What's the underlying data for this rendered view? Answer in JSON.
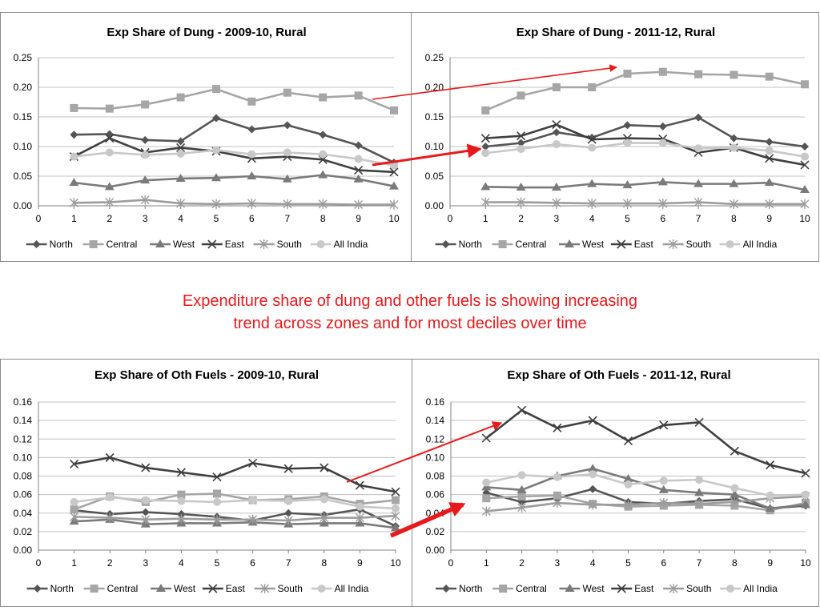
{
  "colors": {
    "North": "#555555",
    "Central": "#a6a6a6",
    "West": "#7a7a7a",
    "East": "#3f3f3f",
    "South": "#9c9c9c",
    "All India": "#c8c8c8",
    "arrow": "#e8191c",
    "grid": "#c0c0c0"
  },
  "caption": {
    "line1": "Expenditure share of dung and other fuels is showing increasing",
    "line2": "trend across zones and for most deciles over time"
  },
  "chart_data": [
    {
      "type": "line",
      "title": "Exp Share of Dung - 2009-10, Rural",
      "x": [
        1,
        2,
        3,
        4,
        5,
        6,
        7,
        8,
        9,
        10
      ],
      "xlim": [
        0,
        10
      ],
      "ylim": [
        0,
        0.25
      ],
      "yticks": [
        "0.00",
        "0.05",
        "0.10",
        "0.15",
        "0.20",
        "0.25"
      ],
      "xticks": [
        "0",
        "1",
        "2",
        "3",
        "4",
        "5",
        "6",
        "7",
        "8",
        "9",
        "10"
      ],
      "series": [
        {
          "name": "North",
          "marker": "diamond",
          "values": [
            0.12,
            0.121,
            0.111,
            0.109,
            0.148,
            0.129,
            0.136,
            0.12,
            0.102,
            0.073
          ]
        },
        {
          "name": "Central",
          "marker": "square",
          "values": [
            0.165,
            0.164,
            0.171,
            0.183,
            0.197,
            0.176,
            0.191,
            0.183,
            0.186,
            0.161
          ]
        },
        {
          "name": "West",
          "marker": "triangle",
          "values": [
            0.039,
            0.032,
            0.043,
            0.046,
            0.047,
            0.05,
            0.045,
            0.052,
            0.045,
            0.033
          ]
        },
        {
          "name": "East",
          "marker": "x",
          "values": [
            0.083,
            0.114,
            0.09,
            0.098,
            0.092,
            0.08,
            0.083,
            0.078,
            0.06,
            0.057
          ]
        },
        {
          "name": "South",
          "marker": "star",
          "values": [
            0.005,
            0.006,
            0.01,
            0.004,
            0.003,
            0.004,
            0.003,
            0.003,
            0.002,
            0.002
          ]
        },
        {
          "name": "All India",
          "marker": "circle",
          "values": [
            0.083,
            0.09,
            0.086,
            0.088,
            0.094,
            0.087,
            0.09,
            0.087,
            0.079,
            0.068
          ]
        }
      ]
    },
    {
      "type": "line",
      "title": "Exp Share of Dung - 2011-12, Rural",
      "x": [
        1,
        2,
        3,
        4,
        5,
        6,
        7,
        8,
        9,
        10
      ],
      "xlim": [
        0,
        10
      ],
      "ylim": [
        0,
        0.25
      ],
      "yticks": [
        "0.00",
        "0.05",
        "0.10",
        "0.15",
        "0.20",
        "0.25"
      ],
      "xticks": [
        "0",
        "1",
        "2",
        "3",
        "4",
        "5",
        "6",
        "7",
        "8",
        "9",
        "10"
      ],
      "series": [
        {
          "name": "North",
          "marker": "diamond",
          "values": [
            0.1,
            0.106,
            0.124,
            0.115,
            0.136,
            0.134,
            0.149,
            0.114,
            0.108,
            0.1
          ]
        },
        {
          "name": "Central",
          "marker": "square",
          "values": [
            0.161,
            0.186,
            0.2,
            0.2,
            0.223,
            0.226,
            0.222,
            0.221,
            0.218,
            0.205
          ]
        },
        {
          "name": "West",
          "marker": "triangle",
          "values": [
            0.032,
            0.031,
            0.031,
            0.037,
            0.035,
            0.04,
            0.037,
            0.037,
            0.039,
            0.027
          ]
        },
        {
          "name": "East",
          "marker": "x",
          "values": [
            0.114,
            0.118,
            0.137,
            0.112,
            0.114,
            0.113,
            0.09,
            0.098,
            0.08,
            0.069
          ]
        },
        {
          "name": "South",
          "marker": "star",
          "values": [
            0.006,
            0.006,
            0.005,
            0.004,
            0.004,
            0.004,
            0.006,
            0.003,
            0.003,
            0.003
          ]
        },
        {
          "name": "All India",
          "marker": "circle",
          "values": [
            0.089,
            0.096,
            0.104,
            0.098,
            0.106,
            0.106,
            0.097,
            0.098,
            0.093,
            0.083
          ]
        }
      ]
    },
    {
      "type": "line",
      "title": "Exp Share of Oth Fuels - 2009-10, Rural",
      "x": [
        1,
        2,
        3,
        4,
        5,
        6,
        7,
        8,
        9,
        10
      ],
      "xlim": [
        0,
        10
      ],
      "ylim": [
        0,
        0.16
      ],
      "yticks": [
        "0.00",
        "0.02",
        "0.04",
        "0.06",
        "0.08",
        "0.10",
        "0.12",
        "0.14",
        "0.16"
      ],
      "xticks": [
        "0",
        "1",
        "2",
        "3",
        "4",
        "5",
        "6",
        "7",
        "8",
        "9",
        "10"
      ],
      "series": [
        {
          "name": "North",
          "marker": "diamond",
          "values": [
            0.043,
            0.039,
            0.041,
            0.039,
            0.036,
            0.032,
            0.04,
            0.038,
            0.044,
            0.026
          ]
        },
        {
          "name": "Central",
          "marker": "square",
          "values": [
            0.044,
            0.058,
            0.052,
            0.06,
            0.061,
            0.054,
            0.055,
            0.058,
            0.05,
            0.054
          ]
        },
        {
          "name": "West",
          "marker": "triangle",
          "values": [
            0.031,
            0.033,
            0.028,
            0.029,
            0.029,
            0.03,
            0.028,
            0.029,
            0.029,
            0.024
          ]
        },
        {
          "name": "East",
          "marker": "x",
          "values": [
            0.093,
            0.1,
            0.089,
            0.084,
            0.079,
            0.094,
            0.088,
            0.089,
            0.07,
            0.063
          ]
        },
        {
          "name": "South",
          "marker": "star",
          "values": [
            0.036,
            0.035,
            0.033,
            0.034,
            0.033,
            0.033,
            0.032,
            0.035,
            0.035,
            0.037
          ]
        },
        {
          "name": "All India",
          "marker": "circle",
          "values": [
            0.052,
            0.057,
            0.054,
            0.053,
            0.052,
            0.054,
            0.053,
            0.055,
            0.047,
            0.045
          ]
        }
      ]
    },
    {
      "type": "line",
      "title": "Exp Share of Oth Fuels - 2011-12, Rural",
      "x": [
        1,
        2,
        3,
        4,
        5,
        6,
        7,
        8,
        9,
        10
      ],
      "xlim": [
        0,
        10
      ],
      "ylim": [
        0,
        0.16
      ],
      "yticks": [
        "0.00",
        "0.02",
        "0.04",
        "0.06",
        "0.08",
        "0.10",
        "0.12",
        "0.14",
        "0.16"
      ],
      "xticks": [
        "0",
        "1",
        "2",
        "3",
        "4",
        "5",
        "6",
        "7",
        "8",
        "9",
        "10"
      ],
      "series": [
        {
          "name": "North",
          "marker": "diamond",
          "values": [
            0.062,
            0.052,
            0.056,
            0.066,
            0.052,
            0.05,
            0.053,
            0.055,
            0.045,
            0.048
          ]
        },
        {
          "name": "Central",
          "marker": "square",
          "values": [
            0.056,
            0.058,
            0.059,
            0.05,
            0.047,
            0.048,
            0.049,
            0.048,
            0.043,
            0.051
          ]
        },
        {
          "name": "West",
          "marker": "triangle",
          "values": [
            0.068,
            0.065,
            0.08,
            0.088,
            0.077,
            0.065,
            0.062,
            0.06,
            0.045,
            0.049
          ]
        },
        {
          "name": "East",
          "marker": "x",
          "values": [
            0.121,
            0.151,
            0.132,
            0.14,
            0.118,
            0.135,
            0.138,
            0.107,
            0.092,
            0.083
          ]
        },
        {
          "name": "South",
          "marker": "star",
          "values": [
            0.042,
            0.046,
            0.051,
            0.049,
            0.049,
            0.051,
            0.05,
            0.052,
            0.056,
            0.058
          ]
        },
        {
          "name": "All India",
          "marker": "circle",
          "values": [
            0.073,
            0.081,
            0.079,
            0.082,
            0.071,
            0.075,
            0.076,
            0.067,
            0.059,
            0.06
          ]
        }
      ]
    }
  ]
}
